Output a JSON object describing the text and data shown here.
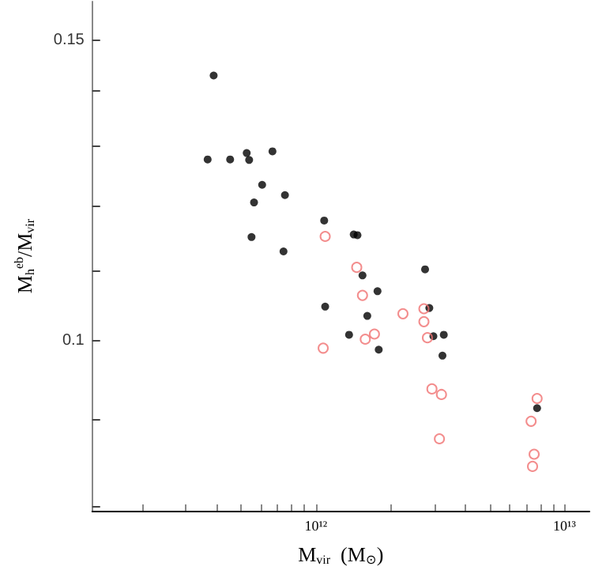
{
  "chart_data": {
    "type": "scatter",
    "xlabel": "M$_{vir}$  (M$_{⊙}$)",
    "ylabel": "M$_{h}$$^{eb}$/M$_{vir}$",
    "log": "xy",
    "grid": false,
    "marker": "circle",
    "xlim": [
      126000000000.0,
      12600000000000.0
    ],
    "xticks": [
      {
        "value": 200000000000.0,
        "label": null
      },
      {
        "value": 300000000000.0,
        "label": null
      },
      {
        "value": 400000000000.0,
        "label": null
      },
      {
        "value": 500000000000.0,
        "label": null
      },
      {
        "value": 600000000000.0,
        "label": null
      },
      {
        "value": 700000000000.0,
        "label": null
      },
      {
        "value": 800000000000.0,
        "label": null
      },
      {
        "value": 900000000000.0,
        "label": null
      },
      {
        "value": 1000000000000.0,
        "label": "10¹²"
      },
      {
        "value": 2000000000000.0,
        "label": null
      },
      {
        "value": 3000000000000.0,
        "label": null
      },
      {
        "value": 4000000000000.0,
        "label": null
      },
      {
        "value": 5000000000000.0,
        "label": null
      },
      {
        "value": 6000000000000.0,
        "label": null
      },
      {
        "value": 7000000000000.0,
        "label": null
      },
      {
        "value": 8000000000000.0,
        "label": null
      },
      {
        "value": 9000000000000.0,
        "label": null
      },
      {
        "value": 10000000000000.0,
        "label": "10¹³"
      }
    ],
    "ylim": [
      0.0795,
      0.158
    ],
    "yticks": [
      {
        "value": 0.08,
        "label": null
      },
      {
        "value": 0.09,
        "label": null
      },
      0.1,
      {
        "value": 0.11,
        "label": null
      },
      {
        "value": 0.12,
        "label": null
      },
      {
        "value": 0.13,
        "label": null
      },
      {
        "value": 0.14,
        "label": null
      },
      0.15
    ],
    "series": [
      {
        "color": "#000000",
        "x": [
          388000000000.0,
          367000000000.0,
          452000000000.0,
          527000000000.0,
          539000000000.0,
          669000000000.0,
          608000000000.0,
          751000000000.0,
          564000000000.0,
          551000000000.0,
          741000000000.0,
          1080000000000.0,
          1420000000000.0,
          1470000000000.0,
          1540000000000.0,
          1770000000000.0,
          1090000000000.0,
          1610000000000.0,
          1360000000000.0,
          1790000000000.0,
          2750000000000.0,
          2860000000000.0,
          2970000000000.0,
          3270000000000.0,
          3230000000000.0,
          7760000000000.0
        ],
        "values": [
          0.143,
          0.1277,
          0.1277,
          0.1288,
          0.1276,
          0.1291,
          0.1234,
          0.1217,
          0.1205,
          0.115,
          0.1128,
          0.1176,
          0.1154,
          0.1153,
          0.1092,
          0.1069,
          0.1047,
          0.1034,
          0.1008,
          0.0988,
          0.1101,
          0.1045,
          0.1006,
          0.1008,
          0.098,
          0.0913
        ]
      },
      {
        "color": "#f07070",
        "x": [
          1090000000000.0,
          1460000000000.0,
          1540000000000.0,
          2240000000000.0,
          2720000000000.0,
          2720000000000.0,
          2810000000000.0,
          1720000000000.0,
          1580000000000.0,
          1070000000000.0,
          2930000000000.0,
          3200000000000.0,
          3140000000000.0,
          7760000000000.0,
          7340000000000.0,
          7550000000000.0,
          7440000000000.0
        ],
        "values": [
          0.1151,
          0.1104,
          0.1063,
          0.1037,
          0.1044,
          0.1026,
          0.1004,
          0.1009,
          0.1002,
          0.099,
          0.0937,
          0.093,
          0.0876,
          0.0925,
          0.0897,
          0.0858,
          0.0844
        ]
      }
    ]
  }
}
